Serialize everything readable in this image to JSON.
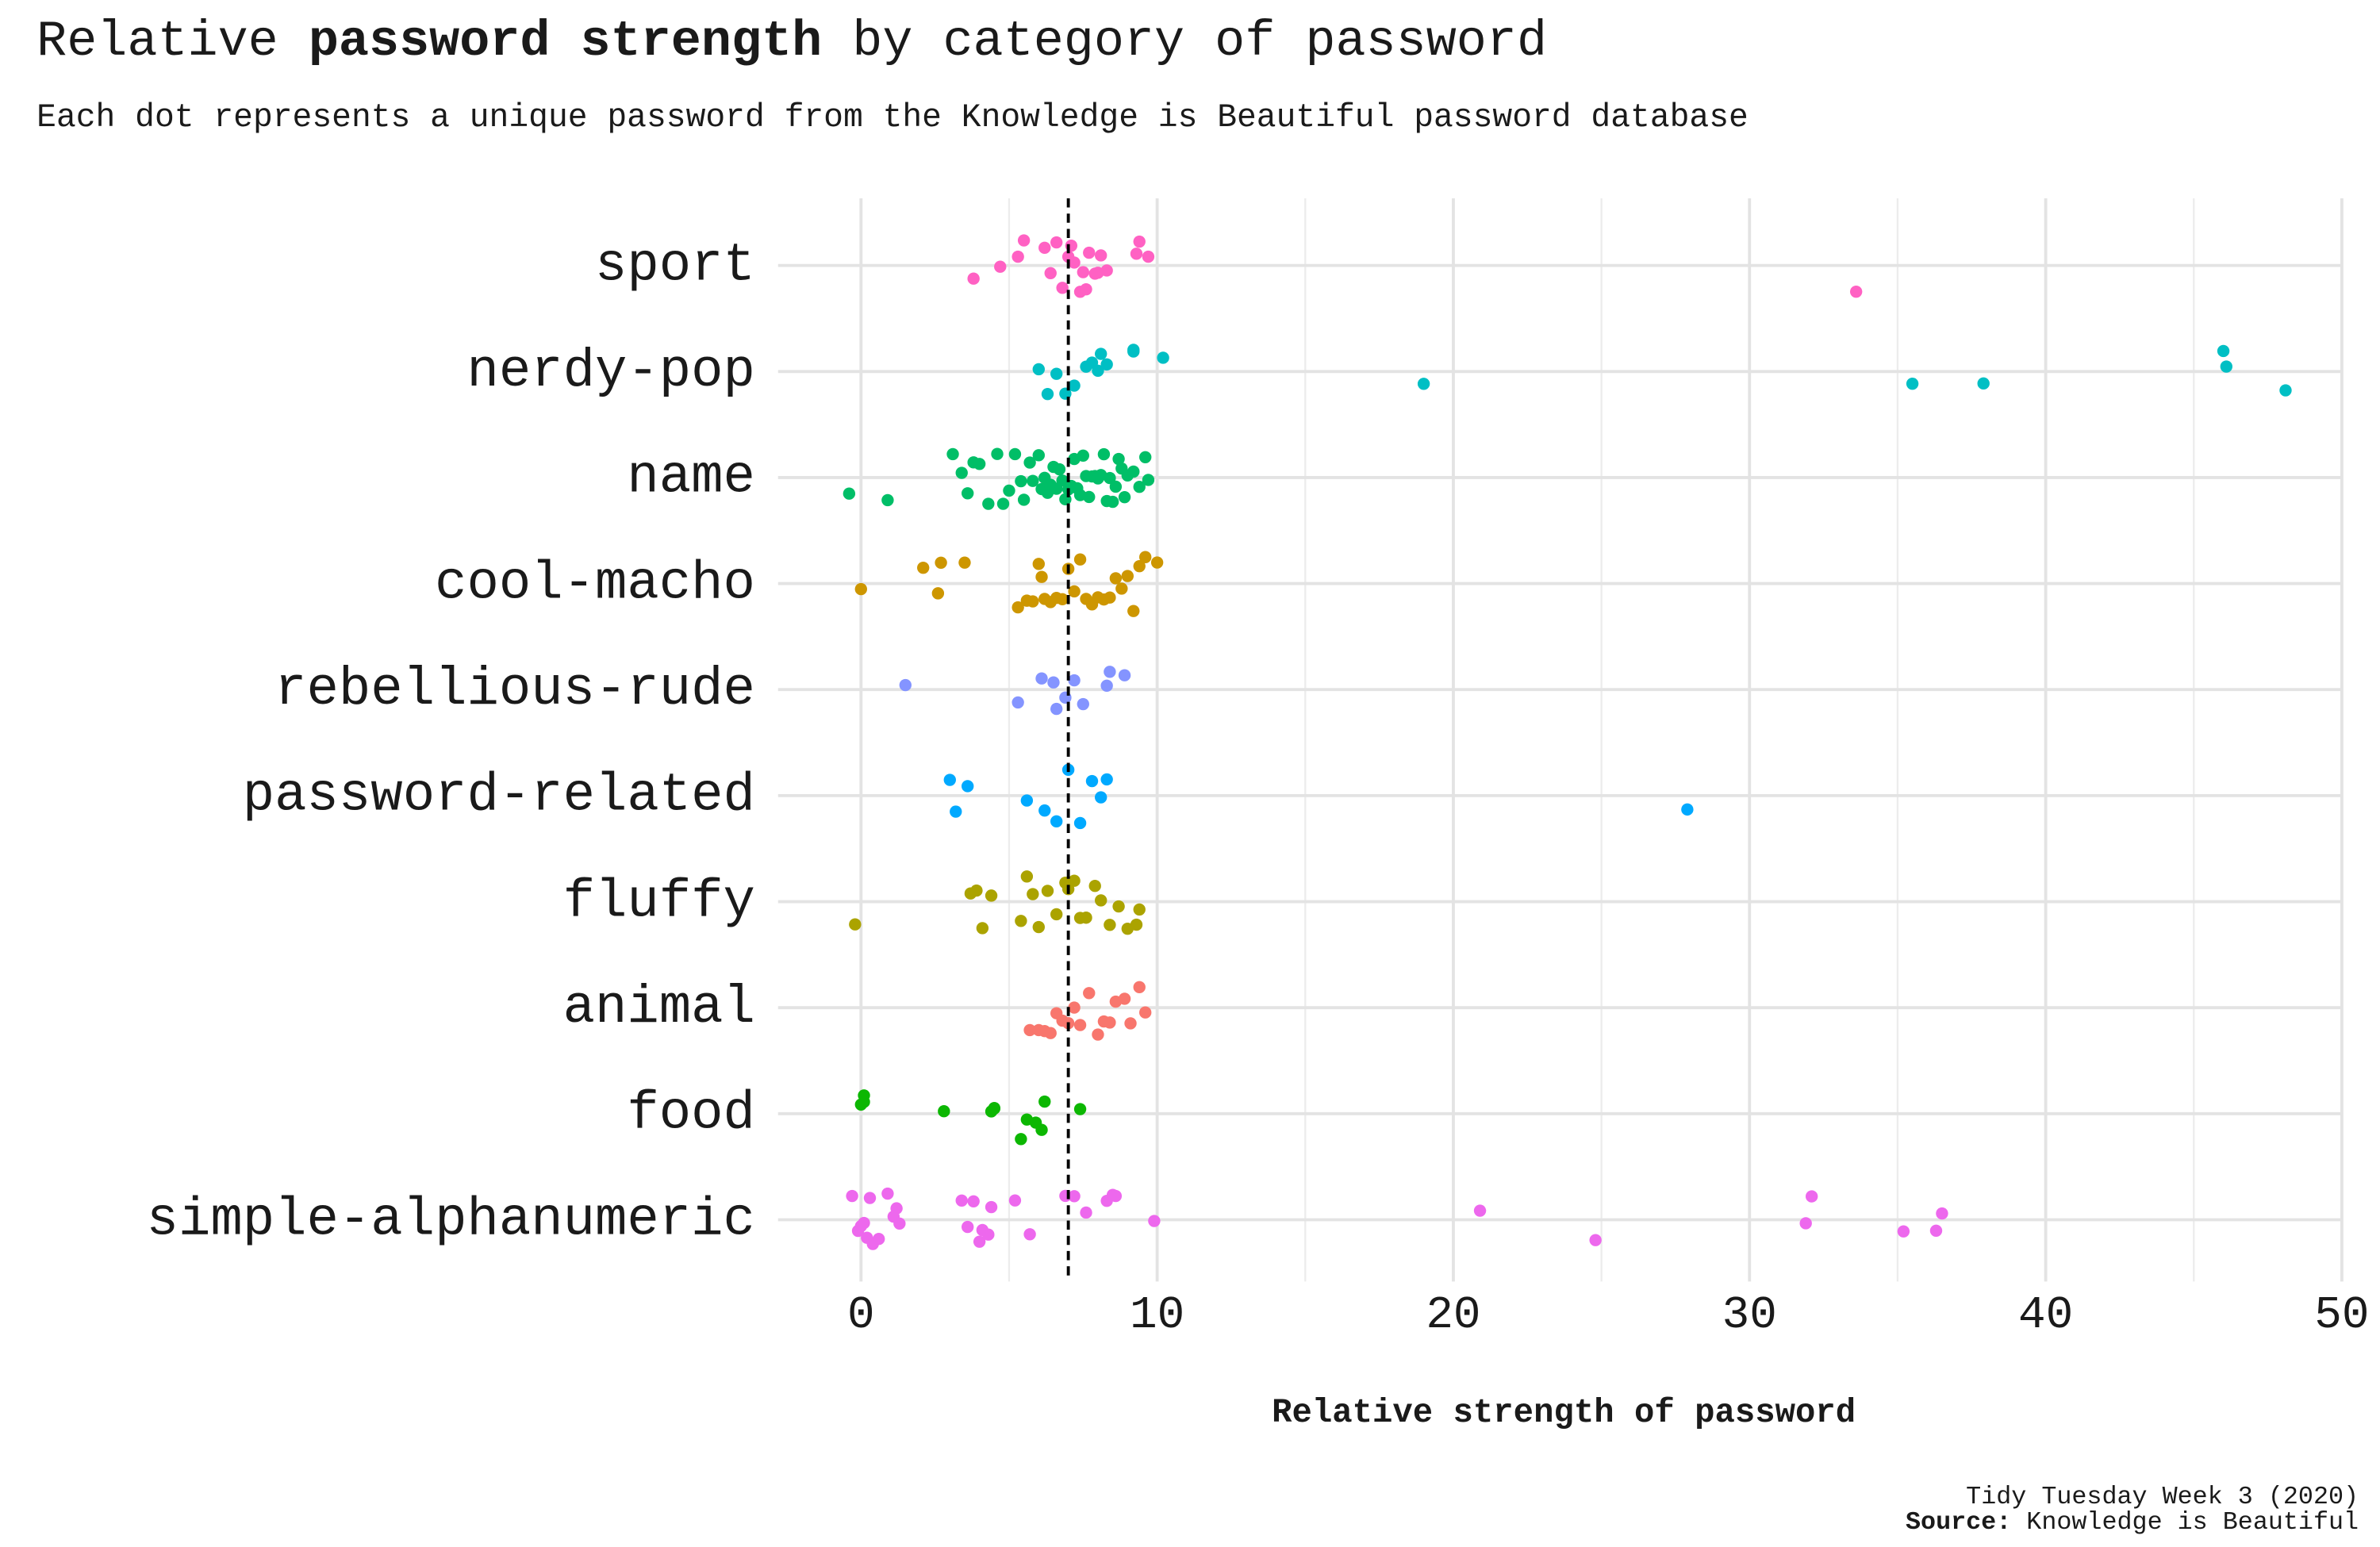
{
  "chart_data": {
    "type": "strip",
    "title_parts": [
      "Relative ",
      "password strength",
      " by category of password"
    ],
    "subtitle": "Each dot represents a unique password from the Knowledge is Beautiful password database",
    "x_label": "Relative strength of password",
    "caption_line1": "Tidy Tuesday Week 3 (2020)",
    "caption_source_label": "Source:",
    "caption_source": " Knowledge is Beautiful",
    "xlim": [
      -2.8,
      50
    ],
    "xticks": [
      0,
      10,
      20,
      30,
      40,
      50
    ],
    "xminor_ticks": [
      5,
      15,
      25,
      35,
      45
    ],
    "grid": true,
    "reference_line": 7,
    "series": [
      {
        "name": "sport",
        "color": "#FF61C3",
        "values": [
          3.8,
          4.7,
          5.3,
          5.5,
          6.2,
          6.4,
          6.6,
          6.8,
          7.0,
          7.1,
          7.2,
          7.4,
          7.5,
          7.6,
          7.7,
          7.9,
          8.0,
          8.1,
          8.3,
          9.3,
          9.4,
          9.7,
          33.6
        ]
      },
      {
        "name": "nerdy-pop",
        "color": "#00BFC4",
        "values": [
          6.0,
          6.3,
          6.6,
          6.9,
          7.2,
          7.6,
          7.8,
          8.0,
          8.1,
          8.3,
          9.2,
          9.2,
          10.2,
          19.0,
          35.5,
          37.9,
          46.0,
          46.1,
          48.1
        ]
      },
      {
        "name": "name",
        "color": "#00BE67",
        "values": [
          -0.4,
          0.9,
          3.1,
          3.4,
          3.6,
          3.8,
          4.0,
          4.3,
          4.6,
          4.8,
          5.0,
          5.2,
          5.4,
          5.5,
          5.7,
          5.8,
          6.0,
          6.1,
          6.2,
          6.3,
          6.4,
          6.5,
          6.6,
          6.7,
          6.8,
          6.9,
          7.0,
          7.1,
          7.2,
          7.3,
          7.4,
          7.5,
          7.6,
          7.7,
          7.8,
          7.9,
          8.0,
          8.1,
          8.2,
          8.3,
          8.4,
          8.5,
          8.6,
          8.7,
          8.8,
          8.9,
          9.0,
          9.2,
          9.4,
          9.6,
          9.7
        ]
      },
      {
        "name": "cool-macho",
        "color": "#CD9600",
        "values": [
          0.0,
          2.1,
          2.6,
          2.7,
          3.5,
          5.3,
          5.6,
          5.8,
          6.0,
          6.1,
          6.2,
          6.4,
          6.6,
          6.8,
          7.0,
          7.2,
          7.4,
          7.6,
          7.8,
          8.0,
          8.2,
          8.4,
          8.6,
          8.8,
          9.0,
          9.2,
          9.4,
          9.6,
          10.0
        ]
      },
      {
        "name": "rebellious-rude",
        "color": "#8494FF",
        "values": [
          1.5,
          5.3,
          6.1,
          6.5,
          6.6,
          6.9,
          7.2,
          7.5,
          8.3,
          8.4,
          8.9
        ]
      },
      {
        "name": "password-related",
        "color": "#00A9FF",
        "values": [
          3.0,
          3.2,
          3.6,
          5.6,
          6.2,
          6.6,
          7.0,
          7.4,
          7.8,
          8.1,
          8.3,
          27.9
        ]
      },
      {
        "name": "fluffy",
        "color": "#ABA300",
        "values": [
          -0.2,
          3.7,
          3.9,
          4.1,
          4.4,
          5.4,
          5.6,
          5.8,
          6.0,
          6.3,
          6.6,
          6.9,
          7.0,
          7.2,
          7.4,
          7.6,
          7.9,
          8.1,
          8.4,
          8.7,
          9.0,
          9.3,
          9.4
        ]
      },
      {
        "name": "animal",
        "color": "#F8766D",
        "values": [
          5.7,
          6.0,
          6.2,
          6.4,
          6.6,
          6.8,
          7.0,
          7.2,
          7.4,
          7.7,
          8.0,
          8.2,
          8.4,
          8.6,
          8.9,
          9.1,
          9.4,
          9.6
        ]
      },
      {
        "name": "food",
        "color": "#0CB702",
        "values": [
          0.0,
          0.1,
          0.1,
          2.8,
          4.4,
          4.5,
          4.5,
          5.4,
          5.6,
          5.9,
          6.1,
          6.2,
          7.4
        ]
      },
      {
        "name": "simple-alphanumeric",
        "color": "#ED68ED",
        "values": [
          -0.3,
          -0.1,
          0.0,
          0.1,
          0.2,
          0.3,
          0.4,
          0.6,
          0.9,
          1.1,
          1.2,
          1.3,
          3.4,
          3.6,
          3.8,
          4.0,
          4.1,
          4.3,
          4.4,
          5.2,
          5.7,
          6.9,
          7.2,
          7.6,
          8.3,
          8.5,
          8.6,
          9.9,
          20.9,
          24.8,
          31.9,
          32.1,
          35.2,
          36.3,
          36.5
        ]
      }
    ]
  }
}
